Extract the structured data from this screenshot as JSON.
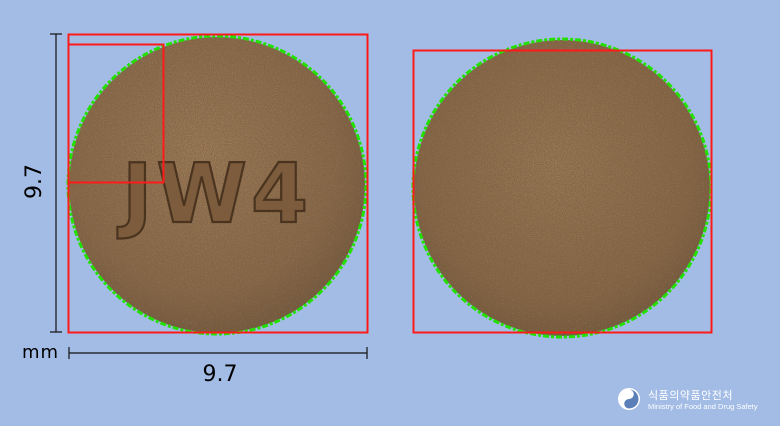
{
  "image": {
    "background_color": "#a3bce6",
    "bbox_color": "#ff1a1a",
    "contour_color": "#22e000",
    "pill_color": "#8d6a47"
  },
  "pill": {
    "imprint_front": "JW4",
    "imprint_back": ""
  },
  "dimensions": {
    "vertical": "9.7",
    "horizontal": "9.7",
    "unit": "mm"
  },
  "logo": {
    "korean": "식품의약품안전처",
    "english": "Ministry of Food and Drug Safety"
  }
}
